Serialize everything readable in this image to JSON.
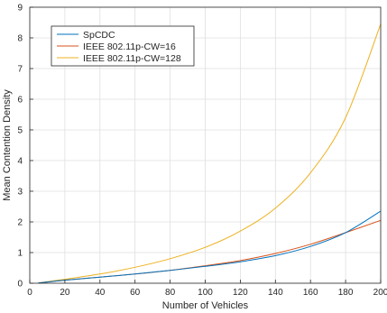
{
  "chart_data": {
    "type": "line",
    "title": "",
    "xlabel": "Number of Vehicles",
    "ylabel": "Mean Contention Density",
    "xlim": [
      0,
      200
    ],
    "ylim": [
      0,
      9
    ],
    "xticks": [
      0,
      20,
      40,
      60,
      80,
      100,
      120,
      140,
      160,
      180,
      200
    ],
    "yticks": [
      0,
      1,
      2,
      3,
      4,
      5,
      6,
      7,
      8,
      9
    ],
    "grid": true,
    "legend_position": "top-left",
    "x": [
      5,
      20,
      40,
      60,
      80,
      100,
      120,
      140,
      160,
      180,
      200
    ],
    "series": [
      {
        "name": "SpCDC",
        "color": "#0072BD",
        "values": [
          0.01,
          0.1,
          0.2,
          0.3,
          0.42,
          0.55,
          0.7,
          0.9,
          1.2,
          1.65,
          2.35
        ]
      },
      {
        "name": "IEEE 802.11p-CW=16",
        "color": "#D95319",
        "values": [
          0.01,
          0.1,
          0.2,
          0.3,
          0.42,
          0.57,
          0.74,
          0.97,
          1.27,
          1.65,
          2.05
        ]
      },
      {
        "name": "IEEE 802.11p-CW=128",
        "color": "#EDB120",
        "values": [
          0.01,
          0.13,
          0.3,
          0.52,
          0.8,
          1.17,
          1.7,
          2.45,
          3.6,
          5.4,
          8.45
        ]
      }
    ]
  }
}
